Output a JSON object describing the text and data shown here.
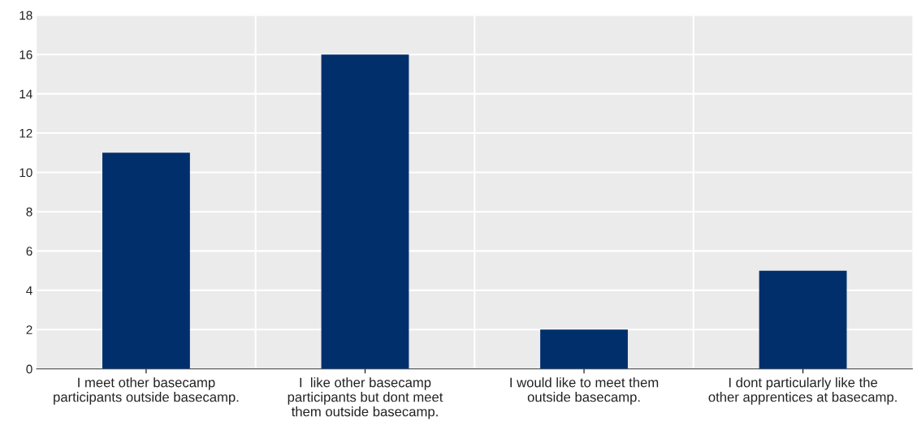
{
  "chart_data": {
    "type": "bar",
    "categories": [
      "I meet other basecamp participants outside basecamp.",
      "I  like other basecamp participants but dont meet them outside basecamp.",
      "I would like to meet them outside basecamp.",
      "I dont particularly like the other apprentices at basecamp."
    ],
    "values": [
      11,
      16,
      2,
      5
    ],
    "color": "#002f6c",
    "ylim": [
      0,
      18
    ],
    "yticks": [
      0,
      2,
      4,
      6,
      8,
      10,
      12,
      14,
      16,
      18
    ],
    "grid": "y",
    "legend": false
  }
}
